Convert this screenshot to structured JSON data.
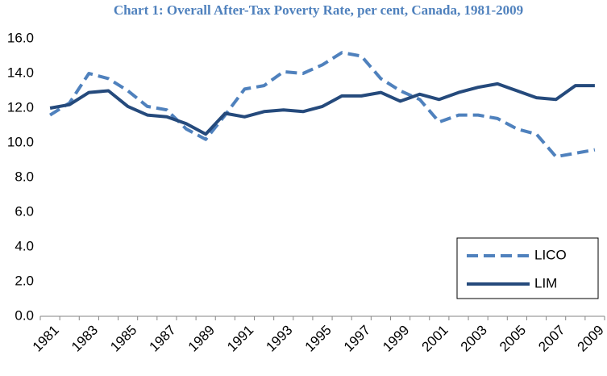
{
  "chart_data": {
    "type": "line",
    "title": "Chart 1: Overall After-Tax Poverty Rate, per cent, Canada, 1981-2009",
    "categories": [
      "1981",
      null,
      "1983",
      null,
      "1985",
      null,
      "1987",
      null,
      "1989",
      null,
      "1991",
      null,
      "1993",
      null,
      "1995",
      null,
      "1997",
      null,
      "1999",
      null,
      "2001",
      null,
      "2003",
      null,
      "2005",
      null,
      "2007",
      null,
      "2009"
    ],
    "series": [
      {
        "name": "LICO",
        "color": "#4f81bd",
        "dashed": true,
        "values": [
          11.6,
          12.3,
          14.0,
          13.7,
          13.0,
          12.1,
          11.9,
          10.8,
          10.2,
          11.6,
          13.1,
          13.3,
          14.1,
          14.0,
          14.5,
          15.2,
          15.0,
          13.7,
          13.0,
          12.5,
          11.2,
          11.6,
          11.6,
          11.4,
          10.8,
          10.5,
          9.2,
          9.4,
          9.6
        ]
      },
      {
        "name": "LIM",
        "color": "#254a7c",
        "dashed": false,
        "values": [
          12.0,
          12.2,
          12.9,
          13.0,
          12.1,
          11.6,
          11.5,
          11.1,
          10.5,
          11.7,
          11.5,
          11.8,
          11.9,
          11.8,
          12.1,
          12.7,
          12.7,
          12.9,
          12.4,
          12.8,
          12.5,
          12.9,
          13.2,
          13.4,
          13.0,
          12.6,
          12.5,
          13.3,
          13.3
        ]
      }
    ],
    "ylim": [
      0,
      16
    ],
    "yticks": [
      {
        "value": 0,
        "label": "0.0"
      },
      {
        "value": 2,
        "label": "2.0"
      },
      {
        "value": 4,
        "label": "4.0"
      },
      {
        "value": 6,
        "label": "6.0"
      },
      {
        "value": 8,
        "label": "8.0"
      },
      {
        "value": 10,
        "label": "10.0"
      },
      {
        "value": 12,
        "label": "12.0"
      },
      {
        "value": 14,
        "label": "14.0"
      },
      {
        "value": 16,
        "label": "16.0"
      }
    ],
    "grid": false,
    "legend": "lower right"
  }
}
